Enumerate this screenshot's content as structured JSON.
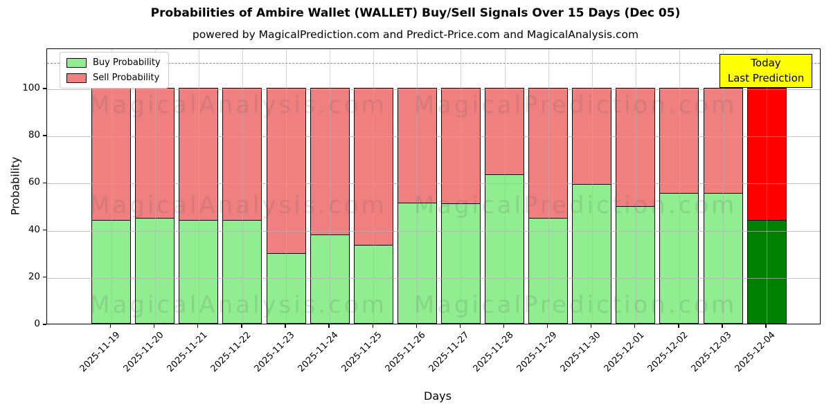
{
  "title": "Probabilities of Ambire Wallet (WALLET) Buy/Sell Signals Over 15 Days (Dec 05)",
  "subtitle": "powered by MagicalPrediction.com and Predict-Price.com and MagicalAnalysis.com",
  "legend": {
    "buy_label": "Buy Probability",
    "sell_label": "Sell Probability"
  },
  "annotation_box": {
    "line1": "Today",
    "line2": "Last Prediction",
    "bg_color": "#FFFF00"
  },
  "watermarks": {
    "left_text": "MagicalAnalysis.com",
    "right_text": "MagicalPrediction.com"
  },
  "colors": {
    "buy": "#90EE90",
    "sell": "#F08080",
    "today_buy": "#008000",
    "today_sell": "#FF0000",
    "grid": "#b2b2b2",
    "dashed_line": "#8a8a8a",
    "axis": "#000000"
  },
  "chart_data": {
    "type": "bar",
    "stacked": true,
    "title": "Probabilities of Ambire Wallet (WALLET) Buy/Sell Signals Over 15 Days (Dec 05)",
    "xlabel": "Days",
    "ylabel": "Probability",
    "ylim": [
      0,
      117
    ],
    "yticks": [
      0,
      20,
      40,
      60,
      80,
      100
    ],
    "dashed_line_y": 111,
    "grid": true,
    "legend_position": "upper-left",
    "categories": [
      "2025-11-19",
      "2025-11-20",
      "2025-11-21",
      "2025-11-22",
      "2025-11-23",
      "2025-11-24",
      "2025-11-25",
      "2025-11-26",
      "2025-11-27",
      "2025-11-28",
      "2025-11-29",
      "2025-11-30",
      "2025-12-01",
      "2025-12-02",
      "2025-12-03",
      "2025-12-04"
    ],
    "series": [
      {
        "name": "Buy Probability",
        "color": "#90EE90",
        "values": [
          44,
          45,
          44,
          44,
          30,
          38,
          33.5,
          51.5,
          51,
          63.5,
          45,
          59.5,
          50,
          55.5,
          55.5,
          44
        ]
      },
      {
        "name": "Sell Probability",
        "color": "#F08080",
        "values": [
          56,
          55,
          56,
          56,
          70,
          62,
          66.5,
          48.5,
          49,
          36.5,
          55,
          40.5,
          50,
          44.5,
          44.5,
          56
        ]
      }
    ],
    "today_bar_index": 15,
    "today_bar_colors": {
      "buy": "#008000",
      "sell": "#FF0000"
    }
  }
}
